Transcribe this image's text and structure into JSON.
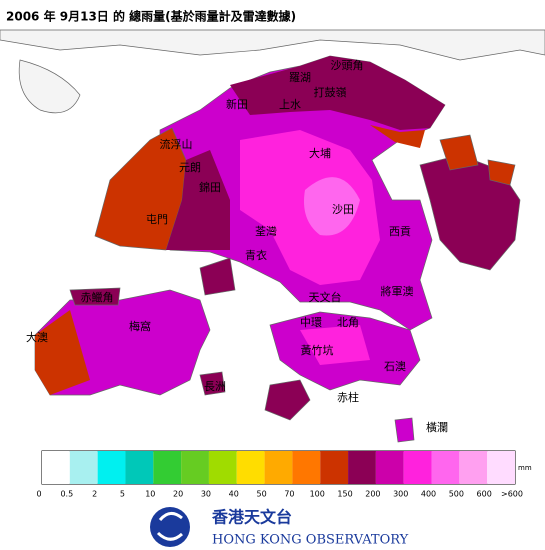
{
  "header": {
    "title": "2006 年  9月13日 的 總雨量(基於雨量計及雷達數據)"
  },
  "map": {
    "places": [
      "沙頭角",
      "羅湖",
      "打鼓嶺",
      "新田",
      "上水",
      "流浮山",
      "元朗",
      "錦田",
      "大埔",
      "沙田",
      "屯門",
      "荃灣",
      "青衣",
      "西貢",
      "赤鱲角",
      "天文台",
      "將軍澳",
      "梅窩",
      "中環",
      "北角",
      "大澳",
      "黃竹坑",
      "石澳",
      "長洲",
      "赤柱",
      "橫瀾"
    ]
  },
  "legend": {
    "colors": [
      "#ffffff",
      "#a8f0f0",
      "#00f0f0",
      "#00c8b8",
      "#33cc33",
      "#66cc22",
      "#a0dc00",
      "#ffdd00",
      "#ffaa00",
      "#ff7700",
      "#cc3300",
      "#8b0055",
      "#cc00aa",
      "#ff22dd",
      "#ff66ee",
      "#ffa0f0",
      "#ffdcff"
    ],
    "labels": [
      0,
      0.5,
      2,
      5,
      10,
      20,
      30,
      40,
      50,
      70,
      100,
      150,
      200,
      300,
      400,
      500,
      600,
      ">600"
    ],
    "unit": "mm"
  },
  "footer": {
    "name_zh": "香港天文台",
    "name_en": "HONG KONG OBSERVATORY"
  }
}
